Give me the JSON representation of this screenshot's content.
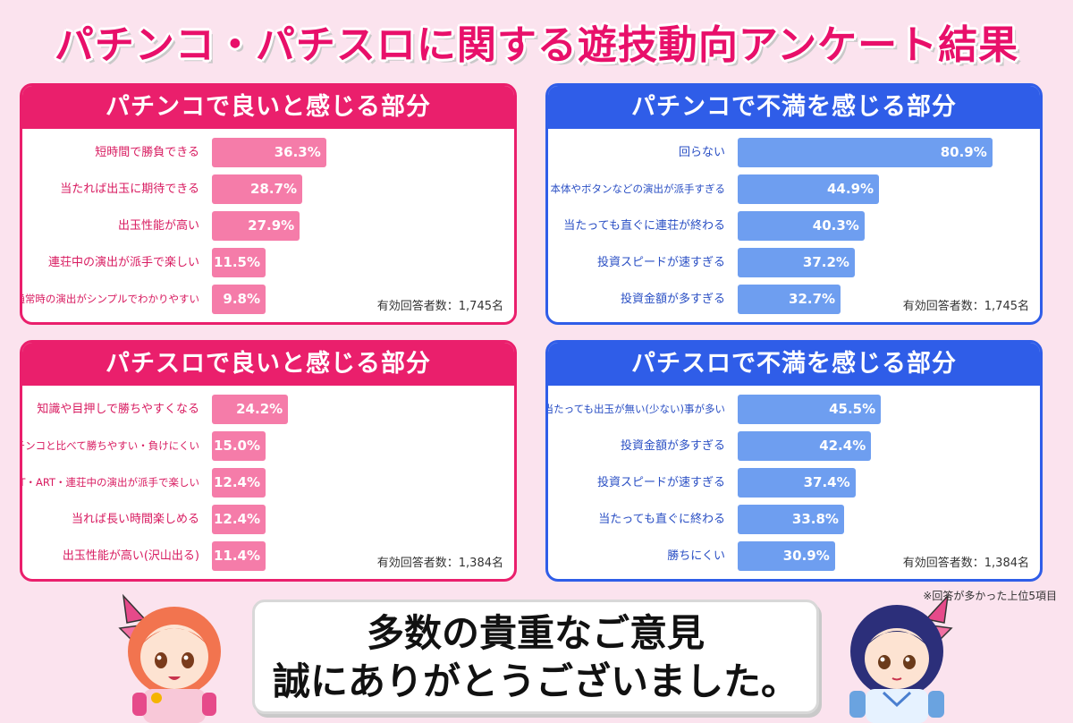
{
  "title": "パチンコ・パチスロに関する遊技動向アンケート結果",
  "chart_data": [
    {
      "type": "bar",
      "orientation": "horizontal",
      "title": "パチンコで良いと感じる部分",
      "categories": [
        "短時間で勝負できる",
        "当たれば出玉に期待できる",
        "出玉性能が高い",
        "連荘中の演出が派手で楽しい",
        "通常時の演出がシンプルでわかりやすい"
      ],
      "values": [
        36.3,
        28.7,
        27.9,
        11.5,
        9.8
      ],
      "value_labels": [
        "36.3%",
        "28.7%",
        "27.9%",
        "11.5%",
        "9.8%"
      ],
      "respondents": "有効回答者数：1,745名",
      "color": "#f57ca9",
      "header_color": "#ea1f6c"
    },
    {
      "type": "bar",
      "orientation": "horizontal",
      "title": "パチンコで不満を感じる部分",
      "categories": [
        "回らない",
        "本体やボタンなどの演出が派手すぎる",
        "当たっても直ぐに連荘が終わる",
        "投資スピードが速すぎる",
        "投資金額が多すぎる"
      ],
      "values": [
        80.9,
        44.9,
        40.3,
        37.2,
        32.7
      ],
      "value_labels": [
        "80.9%",
        "44.9%",
        "40.3%",
        "37.2%",
        "32.7%"
      ],
      "respondents": "有効回答者数：1,745名",
      "color": "#6e9ef0",
      "header_color": "#2f5de8"
    },
    {
      "type": "bar",
      "orientation": "horizontal",
      "title": "パチスロで良いと感じる部分",
      "categories": [
        "知識や目押しで勝ちやすくなる",
        "パチンコと比べて勝ちやすい・負けにくい",
        "AT・ART・連荘中の演出が派手で楽しい",
        "当れば長い時間楽しめる",
        "出玉性能が高い(沢山出る)"
      ],
      "values": [
        24.2,
        15.0,
        12.4,
        12.4,
        11.4
      ],
      "value_labels": [
        "24.2%",
        "15.0%",
        "12.4%",
        "12.4%",
        "11.4%"
      ],
      "respondents": "有効回答者数：1,384名",
      "color": "#f57ca9",
      "header_color": "#ea1f6c"
    },
    {
      "type": "bar",
      "orientation": "horizontal",
      "title": "パチスロで不満を感じる部分",
      "categories": [
        "当たっても出玉が無い(少ない)事が多い",
        "投資金額が多すぎる",
        "投資スピードが速すぎる",
        "当たっても直ぐに終わる",
        "勝ちにくい"
      ],
      "values": [
        45.5,
        42.4,
        37.4,
        33.8,
        30.9
      ],
      "value_labels": [
        "45.5%",
        "42.4%",
        "37.4%",
        "33.8%",
        "30.9%"
      ],
      "respondents": "有効回答者数：1,384名",
      "color": "#6e9ef0",
      "header_color": "#2f5de8"
    }
  ],
  "footnote": "※回答が多かった上位5項目",
  "thanks": {
    "line1": "多数の貴重なご意見",
    "line2": "誠にありがとうございました。"
  },
  "characters": {
    "left": "orange-haired-girl-with-butterfly-ribbon",
    "right": "navy-haired-girl-with-butterfly-ribbon"
  }
}
